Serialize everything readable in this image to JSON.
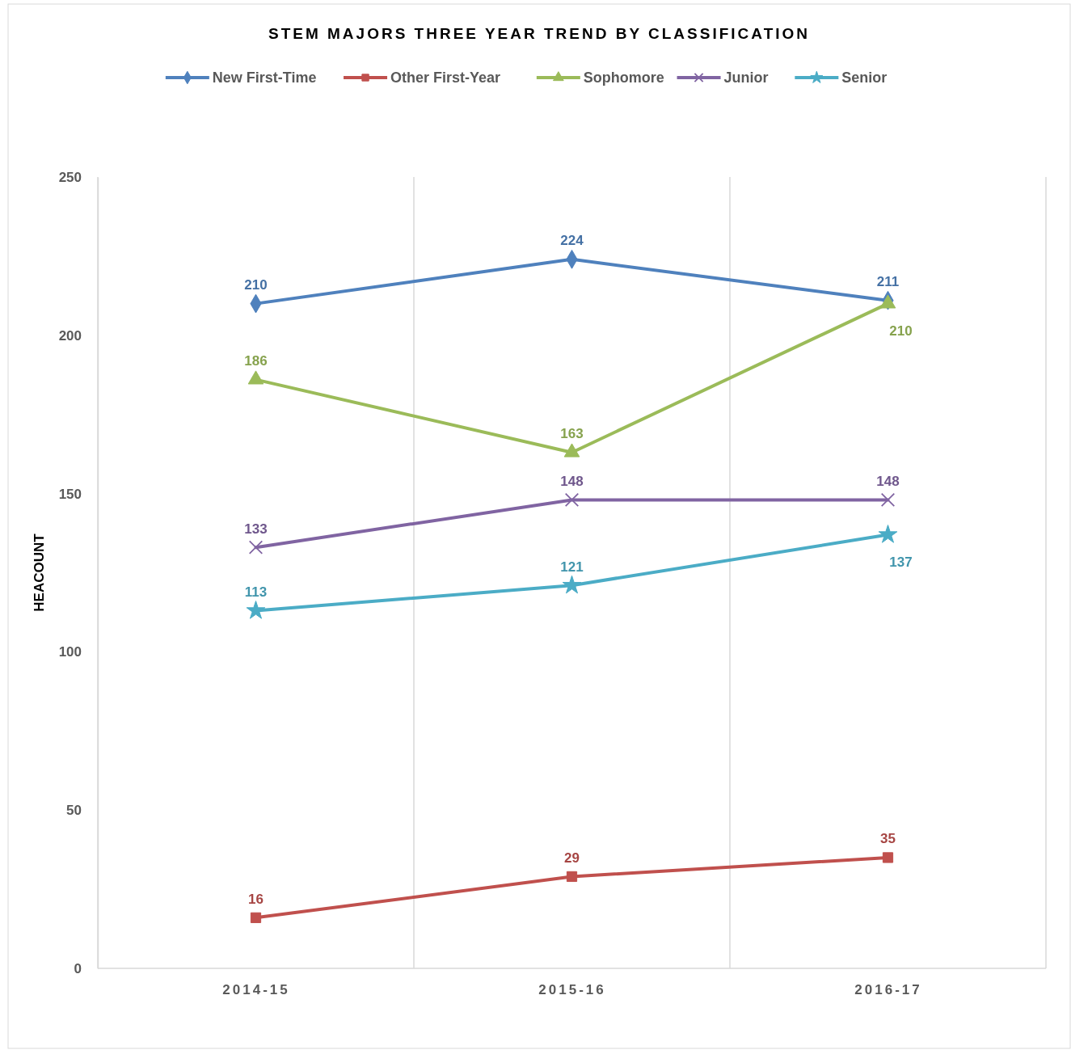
{
  "chart_data": {
    "type": "line",
    "title": "STEM MAJORS THREE YEAR TREND BY CLASSIFICATION",
    "ylabel": "HEACOUNT",
    "categories": [
      "2014-15",
      "2015-16",
      "2016-17"
    ],
    "series": [
      {
        "name": "New First-Time",
        "color": "#4f81bd",
        "marker": "diamond",
        "values": [
          210,
          224,
          211
        ]
      },
      {
        "name": "Other First-Year",
        "color": "#c0504d",
        "marker": "square",
        "values": [
          16,
          29,
          35
        ]
      },
      {
        "name": "Sophomore",
        "color": "#9bbb59",
        "marker": "triangle",
        "values": [
          186,
          163,
          210
        ]
      },
      {
        "name": "Junior",
        "color": "#8064a2",
        "marker": "cross",
        "values": [
          133,
          148,
          148
        ]
      },
      {
        "name": "Senior",
        "color": "#4bacc6",
        "marker": "star",
        "values": [
          113,
          121,
          137
        ]
      }
    ],
    "ylim": [
      0,
      250
    ],
    "yticks": [
      0,
      50,
      100,
      150,
      200,
      250
    ],
    "grid": "x",
    "legend": "top",
    "data_labels": true
  }
}
